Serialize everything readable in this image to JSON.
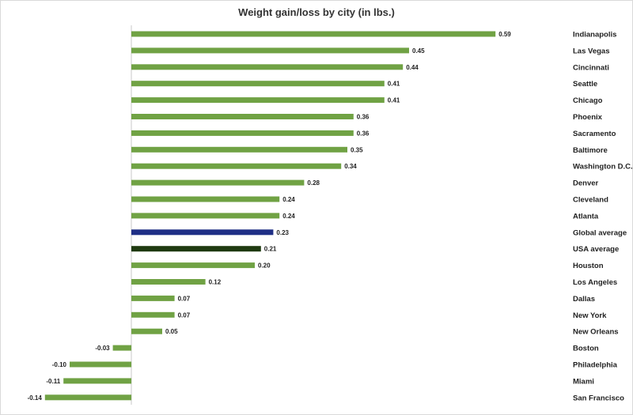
{
  "chart_data": {
    "type": "bar",
    "orientation": "horizontal",
    "title": "Weight gain/loss by city (in lbs.)",
    "categories": [
      "Indianapolis",
      "Las Vegas",
      "Cincinnati",
      "Seattle",
      "Chicago",
      "Phoenix",
      "Sacramento",
      "Baltimore",
      "Washington D.C.",
      "Denver",
      "Cleveland",
      "Atlanta",
      "Global average",
      "USA average",
      "Houston",
      "Los Angeles",
      "Dallas",
      "New York",
      "New Orleans",
      "Boston",
      "Philadelphia",
      "Miami",
      "San Francisco"
    ],
    "values": [
      0.59,
      0.45,
      0.44,
      0.41,
      0.41,
      0.36,
      0.36,
      0.35,
      0.34,
      0.28,
      0.24,
      0.24,
      0.23,
      0.21,
      0.2,
      0.12,
      0.07,
      0.07,
      0.05,
      -0.03,
      -0.1,
      -0.11,
      -0.14
    ],
    "value_labels": [
      "0.59",
      "0.45",
      "0.44",
      "0.41",
      "0.41",
      "0.36",
      "0.36",
      "0.35",
      "0.34",
      "0.28",
      "0.24",
      "0.24",
      "0.23",
      "0.21",
      "0.20",
      "0.12",
      "0.07",
      "0.07",
      "0.05",
      "-0.03",
      "-0.10",
      "-0.11",
      "-0.14"
    ],
    "bar_colors": [
      "#70a244",
      "#70a244",
      "#70a244",
      "#70a244",
      "#70a244",
      "#70a244",
      "#70a244",
      "#70a244",
      "#70a244",
      "#70a244",
      "#70a244",
      "#70a244",
      "#1f2f86",
      "#1f3a10",
      "#70a244",
      "#70a244",
      "#70a244",
      "#70a244",
      "#70a244",
      "#70a244",
      "#70a244",
      "#70a244",
      "#70a244"
    ],
    "xlim": [
      -0.15,
      0.6
    ],
    "grid": false,
    "legend": "none",
    "category_labels_position": "right"
  }
}
